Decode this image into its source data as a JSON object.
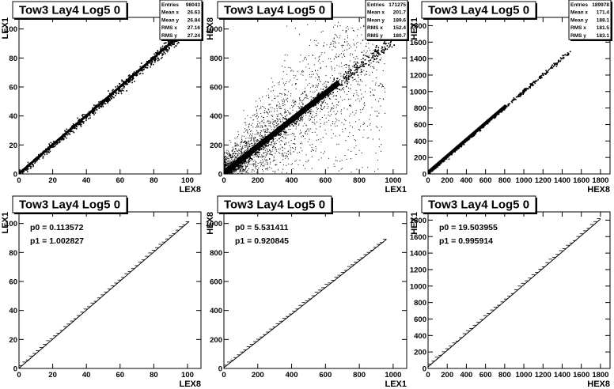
{
  "chart_data": [
    {
      "type": "scatter",
      "title": "Tow3 Lay4 Log5 0",
      "xlabel": "LEX8",
      "ylabel": "LEX1",
      "xlim": [
        0,
        108
      ],
      "ylim": [
        0,
        108
      ],
      "xticks": [
        0,
        20,
        40,
        60,
        80,
        100
      ],
      "yticks": [
        0,
        20,
        40,
        60,
        80,
        100
      ],
      "stats": [
        {
          "label": "Entries",
          "value": "98043"
        },
        {
          "label": "Mean x",
          "value": "26.63"
        },
        {
          "label": "Mean y",
          "value": "26.84"
        },
        {
          "label": "RMS x",
          "value": "27.16"
        },
        {
          "label": "RMS y",
          "value": "27.24"
        }
      ],
      "band": {
        "slope": 1.0,
        "intercept": 0.2,
        "x_range": [
          0,
          100
        ],
        "spread": 1.2,
        "outliers": 0
      }
    },
    {
      "type": "scatter",
      "title": "Tow3 Lay4 Log5 0",
      "xlabel": "LEX1",
      "ylabel": "HEX8",
      "xlim": [
        0,
        1080
      ],
      "ylim": [
        0,
        1080
      ],
      "xticks": [
        0,
        200,
        400,
        600,
        800,
        1000
      ],
      "yticks": [
        0,
        200,
        400,
        600,
        800,
        1000
      ],
      "stats": [
        {
          "label": "Entries",
          "value": "171275"
        },
        {
          "label": "Mean x",
          "value": "201.7"
        },
        {
          "label": "Mean y",
          "value": "189.6"
        },
        {
          "label": "RMS x",
          "value": "152.4"
        },
        {
          "label": "RMS y",
          "value": "180.7"
        }
      ],
      "band": {
        "slope": 0.92,
        "intercept": 5.5,
        "x_range": [
          0,
          1000
        ],
        "spread": 18,
        "outliers": 2600
      }
    },
    {
      "type": "scatter",
      "title": "Tow3 Lay4 Log5 0",
      "xlabel": "HEX8",
      "ylabel": "HEX1",
      "xlim": [
        0,
        1900
      ],
      "ylim": [
        0,
        1900
      ],
      "xticks": [
        0,
        200,
        400,
        600,
        800,
        1000,
        1200,
        1400,
        1600,
        1800
      ],
      "yticks": [
        0,
        200,
        400,
        600,
        800,
        1000,
        1200,
        1400,
        1600,
        1800
      ],
      "stats": [
        {
          "label": "Entries",
          "value": "189978"
        },
        {
          "label": "Mean x",
          "value": "171.4"
        },
        {
          "label": "Mean y",
          "value": "188.1"
        },
        {
          "label": "RMS x",
          "value": "181.5"
        },
        {
          "label": "RMS y",
          "value": "183.1"
        }
      ],
      "band": {
        "slope": 0.996,
        "intercept": 19.5,
        "x_range": [
          0,
          1480
        ],
        "spread": 8,
        "outliers": 0
      }
    },
    {
      "type": "line",
      "title": "Tow3 Lay4 Log5 0",
      "xlabel": "LEX8",
      "ylabel": "LEX1",
      "xlim": [
        0,
        108
      ],
      "ylim": [
        0,
        108
      ],
      "xticks": [
        0,
        20,
        40,
        60,
        80,
        100
      ],
      "yticks": [
        0,
        20,
        40,
        60,
        80,
        100
      ],
      "fit": {
        "p0": "p0 = 0.113572",
        "p1": "p1 = 1.002827",
        "p0_value": 0.113572,
        "p1_value": 1.002827,
        "x_range": [
          0,
          101
        ]
      }
    },
    {
      "type": "line",
      "title": "Tow3 Lay4 Log5 0",
      "xlabel": "LEX1",
      "ylabel": "HEX8",
      "xlim": [
        0,
        1080
      ],
      "ylim": [
        0,
        1080
      ],
      "xticks": [
        0,
        200,
        400,
        600,
        800,
        1000
      ],
      "yticks": [
        0,
        200,
        400,
        600,
        800,
        1000
      ],
      "fit": {
        "p0": "p0 = 5.531411",
        "p1": "p1 = 0.920845",
        "p0_value": 5.531411,
        "p1_value": 0.920845,
        "x_range": [
          0,
          960
        ]
      }
    },
    {
      "type": "line",
      "title": "Tow3 Lay4 Log5 0",
      "xlabel": "HEX8",
      "ylabel": "HEX1",
      "xlim": [
        0,
        1900
      ],
      "ylim": [
        0,
        1900
      ],
      "xticks": [
        0,
        200,
        400,
        600,
        800,
        1000,
        1200,
        1400,
        1600,
        1800
      ],
      "yticks": [
        0,
        200,
        400,
        600,
        800,
        1000,
        1200,
        1400,
        1600,
        1800
      ],
      "fit": {
        "p0": "p0 = 19.503955",
        "p1": "p1 = 0.995914",
        "p0_value": 19.503955,
        "p1_value": 0.995914,
        "x_range": [
          0,
          1800
        ]
      }
    }
  ]
}
